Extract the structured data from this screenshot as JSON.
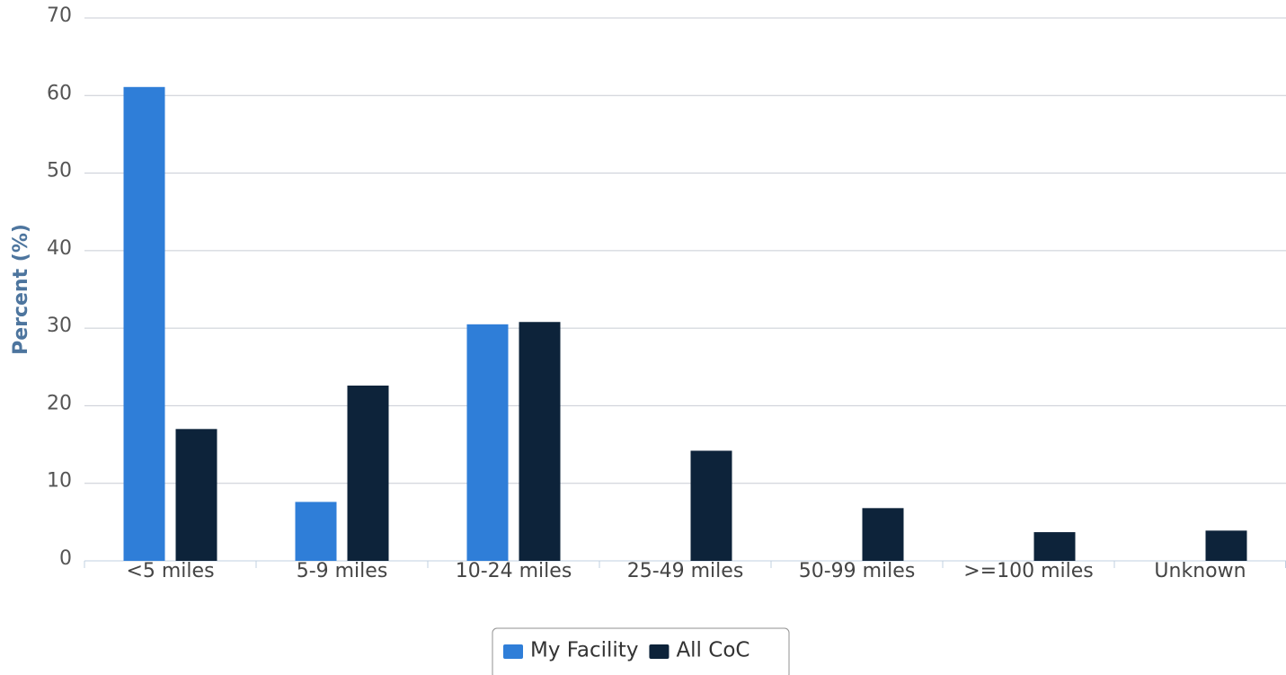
{
  "chart_data": {
    "type": "bar",
    "y_label": "Percent (%)",
    "categories": [
      "<5 miles",
      "5-9 miles",
      "10-24 miles",
      "25-49 miles",
      "50-99 miles",
      ">=100 miles",
      "Unknown"
    ],
    "series": [
      {
        "name": "My Facility",
        "color": "#2f7ed8",
        "values": [
          61.1,
          7.6,
          30.5,
          0,
          0,
          0,
          0
        ]
      },
      {
        "name": "All CoC",
        "color": "#0d233a",
        "values": [
          17.0,
          22.6,
          30.8,
          14.2,
          6.8,
          3.7,
          3.9
        ]
      }
    ],
    "ylim": [
      0,
      70
    ],
    "yticks": [
      0,
      10,
      20,
      30,
      40,
      50,
      60,
      70
    ],
    "grid": true,
    "legend": "bottom"
  }
}
